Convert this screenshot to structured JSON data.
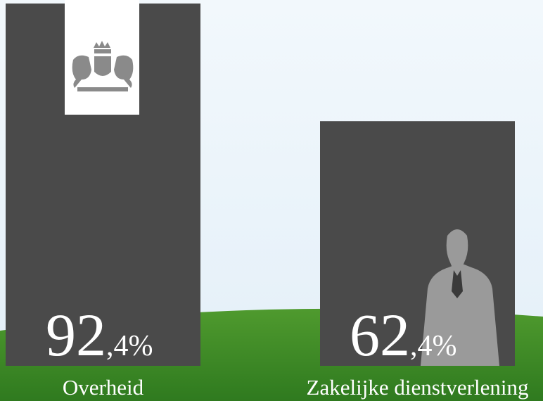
{
  "chart_data": {
    "type": "bar",
    "categories": [
      "Overheid",
      "Zakelijke dienstverlening"
    ],
    "values": [
      92.4,
      62.4
    ],
    "value_labels": [
      "92,4%",
      "62,4%"
    ],
    "color": "#4a4a4a"
  }
}
